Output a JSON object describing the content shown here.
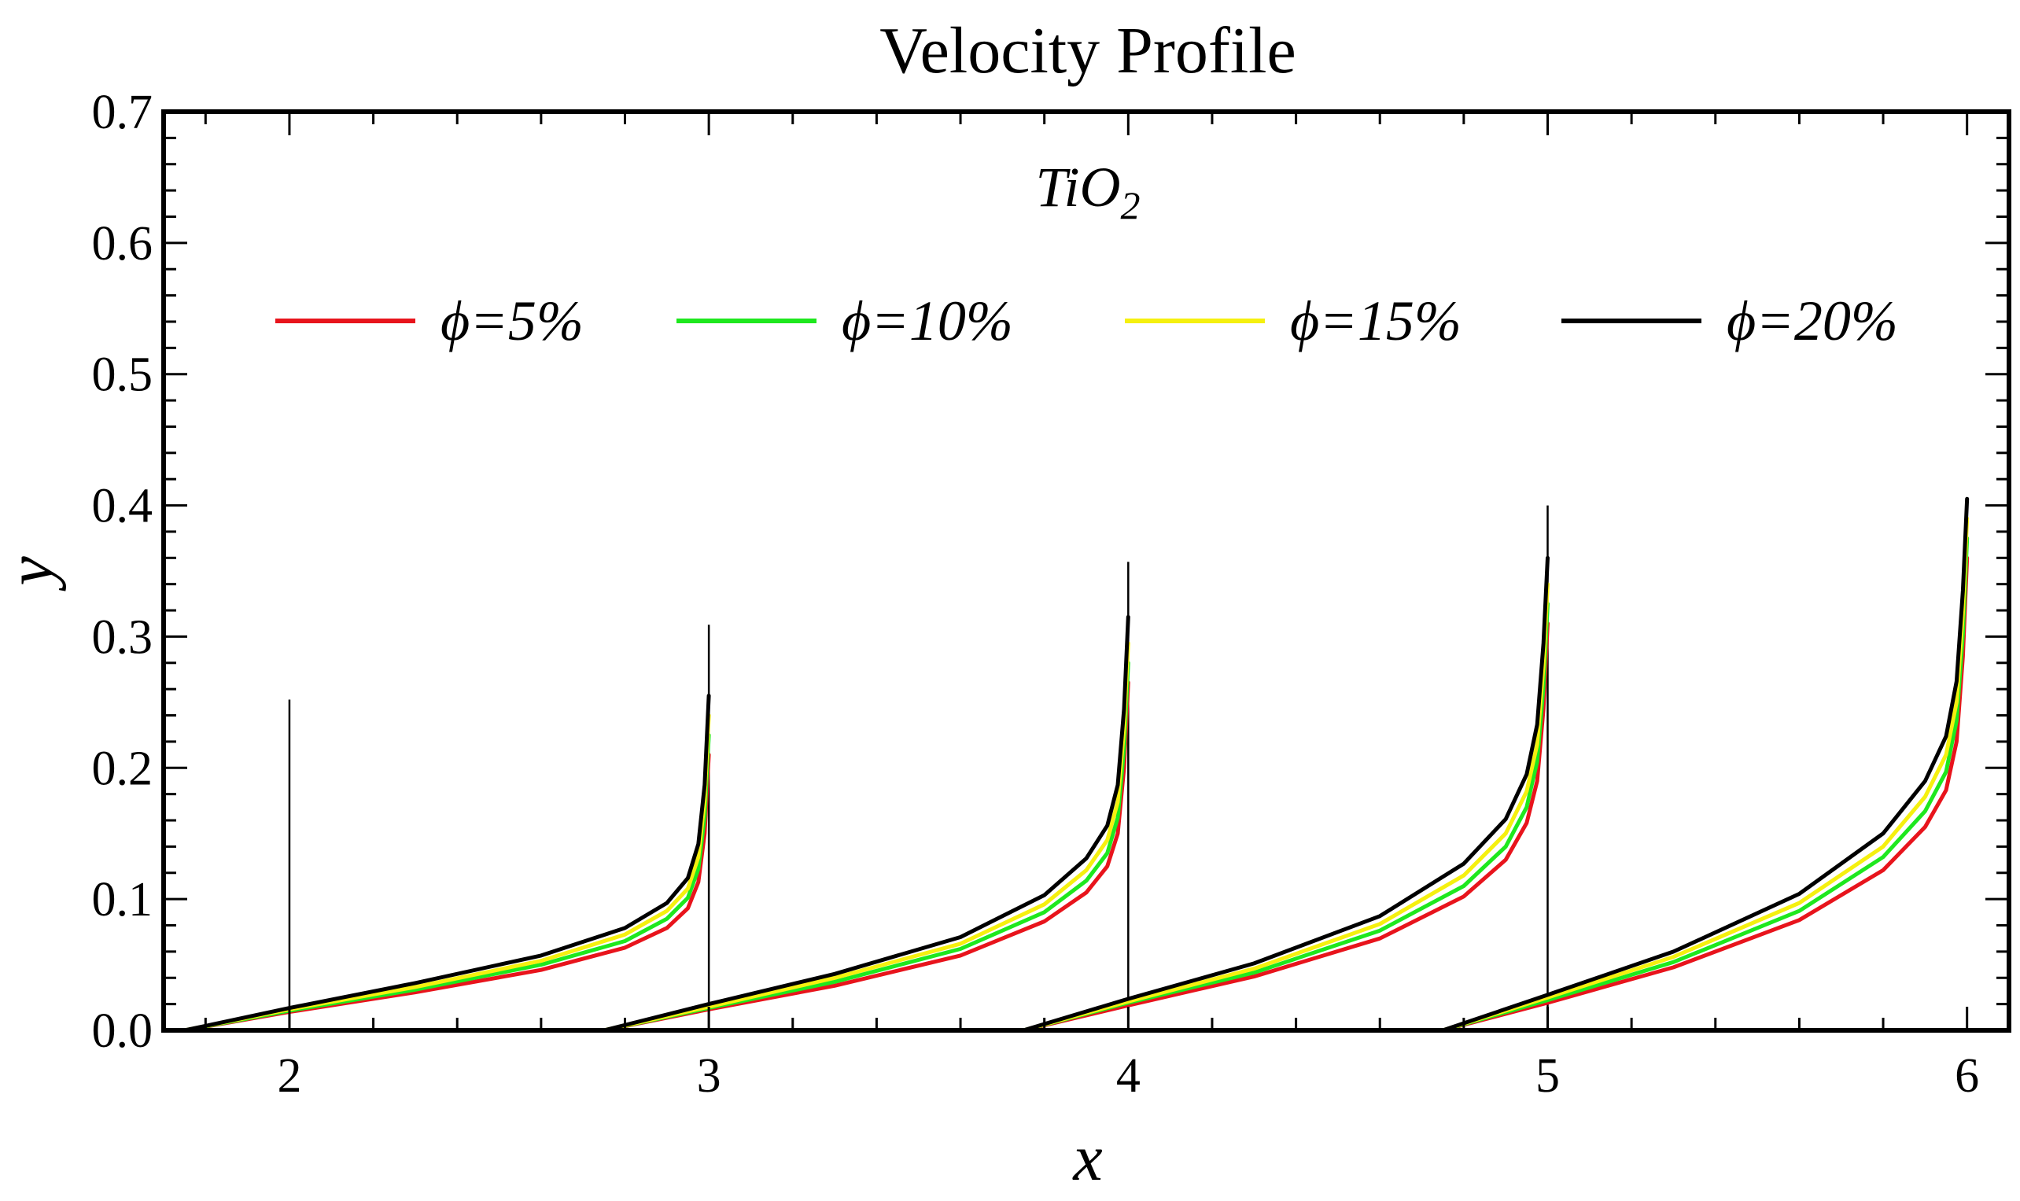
{
  "chart_data": {
    "type": "line",
    "title": "Velocity Profile",
    "xlabel": "x",
    "ylabel": "y",
    "xlim": [
      1.7,
      6.1
    ],
    "ylim": [
      0,
      0.7
    ],
    "xticks": [
      {
        "value": 2,
        "label": "2"
      },
      {
        "value": 3,
        "label": "3"
      },
      {
        "value": 4,
        "label": "4"
      },
      {
        "value": 5,
        "label": "5"
      },
      {
        "value": 6,
        "label": "6"
      }
    ],
    "yticks": [
      {
        "value": 0.0,
        "label": "0.0"
      },
      {
        "value": 0.1,
        "label": "0.1"
      },
      {
        "value": 0.2,
        "label": "0.2"
      },
      {
        "value": 0.3,
        "label": "0.3"
      },
      {
        "value": 0.4,
        "label": "0.4"
      },
      {
        "value": 0.5,
        "label": "0.5"
      },
      {
        "value": 0.6,
        "label": "0.6"
      },
      {
        "value": 0.7,
        "label": "0.7"
      }
    ],
    "annotation": {
      "base": "TiO",
      "subscript": "2"
    },
    "legend_position": "top",
    "segments": [
      {
        "x0": 1.75,
        "x1": 3.0
      },
      {
        "x0": 2.75,
        "x1": 4.0
      },
      {
        "x0": 3.75,
        "x1": 5.0
      },
      {
        "x0": 4.75,
        "x1": 6.0
      }
    ],
    "vertical_lines": [
      {
        "x": 2,
        "ymax": 0.252
      },
      {
        "x": 3,
        "ymax": 0.309
      },
      {
        "x": 4,
        "ymax": 0.357
      },
      {
        "x": 5,
        "ymax": 0.4
      }
    ],
    "series": [
      {
        "name": "ϕ=5%",
        "color": "#e8141c",
        "segment_points": [
          [
            [
              1.75,
              0
            ],
            [
              2.0,
              0.014
            ],
            [
              2.3,
              0.029
            ],
            [
              2.6,
              0.046
            ],
            [
              2.8,
              0.063
            ],
            [
              2.9,
              0.078
            ],
            [
              2.95,
              0.093
            ],
            [
              2.975,
              0.113
            ],
            [
              2.99,
              0.15
            ],
            [
              3.0,
              0.21
            ]
          ],
          [
            [
              2.75,
              0
            ],
            [
              3.0,
              0.016
            ],
            [
              3.3,
              0.034
            ],
            [
              3.6,
              0.057
            ],
            [
              3.8,
              0.083
            ],
            [
              3.9,
              0.105
            ],
            [
              3.95,
              0.125
            ],
            [
              3.975,
              0.15
            ],
            [
              3.99,
              0.2
            ],
            [
              4.0,
              0.265
            ]
          ],
          [
            [
              3.75,
              0
            ],
            [
              4.0,
              0.019
            ],
            [
              4.3,
              0.041
            ],
            [
              4.6,
              0.07
            ],
            [
              4.8,
              0.102
            ],
            [
              4.9,
              0.13
            ],
            [
              4.95,
              0.158
            ],
            [
              4.975,
              0.19
            ],
            [
              4.99,
              0.245
            ],
            [
              5.0,
              0.31
            ]
          ],
          [
            [
              4.75,
              0
            ],
            [
              5.0,
              0.021
            ],
            [
              5.3,
              0.048
            ],
            [
              5.6,
              0.084
            ],
            [
              5.8,
              0.122
            ],
            [
              5.9,
              0.155
            ],
            [
              5.95,
              0.183
            ],
            [
              5.975,
              0.22
            ],
            [
              5.99,
              0.285
            ],
            [
              6.0,
              0.36
            ]
          ]
        ]
      },
      {
        "name": "ϕ=10%",
        "color": "#1ee81e",
        "segment_points": [
          [
            [
              1.75,
              0
            ],
            [
              2.0,
              0.015
            ],
            [
              2.3,
              0.031
            ],
            [
              2.6,
              0.05
            ],
            [
              2.8,
              0.068
            ],
            [
              2.9,
              0.085
            ],
            [
              2.95,
              0.101
            ],
            [
              2.975,
              0.123
            ],
            [
              2.99,
              0.163
            ],
            [
              3.0,
              0.225
            ]
          ],
          [
            [
              2.75,
              0
            ],
            [
              3.0,
              0.017
            ],
            [
              3.3,
              0.037
            ],
            [
              3.6,
              0.062
            ],
            [
              3.8,
              0.09
            ],
            [
              3.9,
              0.114
            ],
            [
              3.95,
              0.135
            ],
            [
              3.975,
              0.162
            ],
            [
              3.99,
              0.215
            ],
            [
              4.0,
              0.28
            ]
          ],
          [
            [
              3.75,
              0
            ],
            [
              4.0,
              0.021
            ],
            [
              4.3,
              0.044
            ],
            [
              4.6,
              0.076
            ],
            [
              4.8,
              0.11
            ],
            [
              4.9,
              0.14
            ],
            [
              4.95,
              0.17
            ],
            [
              4.975,
              0.205
            ],
            [
              4.99,
              0.262
            ],
            [
              5.0,
              0.325
            ]
          ],
          [
            [
              4.75,
              0
            ],
            [
              5.0,
              0.023
            ],
            [
              5.3,
              0.052
            ],
            [
              5.6,
              0.091
            ],
            [
              5.8,
              0.132
            ],
            [
              5.9,
              0.167
            ],
            [
              5.95,
              0.197
            ],
            [
              5.975,
              0.236
            ],
            [
              5.99,
              0.302
            ],
            [
              6.0,
              0.375
            ]
          ]
        ]
      },
      {
        "name": "ϕ=15%",
        "color": "#f5f00f",
        "segment_points": [
          [
            [
              1.75,
              0
            ],
            [
              2.0,
              0.016
            ],
            [
              2.3,
              0.033
            ],
            [
              2.6,
              0.053
            ],
            [
              2.8,
              0.073
            ],
            [
              2.9,
              0.091
            ],
            [
              2.95,
              0.108
            ],
            [
              2.975,
              0.132
            ],
            [
              2.99,
              0.175
            ],
            [
              3.0,
              0.24
            ]
          ],
          [
            [
              2.75,
              0
            ],
            [
              3.0,
              0.018
            ],
            [
              3.3,
              0.04
            ],
            [
              3.6,
              0.066
            ],
            [
              3.8,
              0.096
            ],
            [
              3.9,
              0.122
            ],
            [
              3.95,
              0.145
            ],
            [
              3.975,
              0.174
            ],
            [
              3.99,
              0.23
            ],
            [
              4.0,
              0.295
            ]
          ],
          [
            [
              3.75,
              0
            ],
            [
              4.0,
              0.022
            ],
            [
              4.3,
              0.047
            ],
            [
              4.6,
              0.081
            ],
            [
              4.8,
              0.118
            ],
            [
              4.9,
              0.15
            ],
            [
              4.95,
              0.182
            ],
            [
              4.975,
              0.218
            ],
            [
              4.99,
              0.278
            ],
            [
              5.0,
              0.34
            ]
          ],
          [
            [
              4.75,
              0
            ],
            [
              5.0,
              0.025
            ],
            [
              5.3,
              0.056
            ],
            [
              5.6,
              0.097
            ],
            [
              5.8,
              0.14
            ],
            [
              5.9,
              0.178
            ],
            [
              5.95,
              0.21
            ],
            [
              5.975,
              0.25
            ],
            [
              5.99,
              0.318
            ],
            [
              6.0,
              0.39
            ]
          ]
        ]
      },
      {
        "name": "ϕ=20%",
        "color": "#000000",
        "segment_points": [
          [
            [
              1.75,
              0
            ],
            [
              2.0,
              0.017
            ],
            [
              2.3,
              0.036
            ],
            [
              2.6,
              0.057
            ],
            [
              2.8,
              0.078
            ],
            [
              2.9,
              0.097
            ],
            [
              2.95,
              0.116
            ],
            [
              2.975,
              0.142
            ],
            [
              2.99,
              0.187
            ],
            [
              3.0,
              0.255
            ]
          ],
          [
            [
              2.75,
              0
            ],
            [
              3.0,
              0.02
            ],
            [
              3.3,
              0.043
            ],
            [
              3.6,
              0.071
            ],
            [
              3.8,
              0.103
            ],
            [
              3.9,
              0.131
            ],
            [
              3.95,
              0.156
            ],
            [
              3.975,
              0.187
            ],
            [
              3.99,
              0.245
            ],
            [
              4.0,
              0.315
            ]
          ],
          [
            [
              3.75,
              0
            ],
            [
              4.0,
              0.024
            ],
            [
              4.3,
              0.051
            ],
            [
              4.6,
              0.087
            ],
            [
              4.8,
              0.127
            ],
            [
              4.9,
              0.161
            ],
            [
              4.95,
              0.195
            ],
            [
              4.975,
              0.233
            ],
            [
              4.99,
              0.295
            ],
            [
              5.0,
              0.36
            ]
          ],
          [
            [
              4.75,
              0
            ],
            [
              5.0,
              0.027
            ],
            [
              5.3,
              0.06
            ],
            [
              5.6,
              0.104
            ],
            [
              5.8,
              0.15
            ],
            [
              5.9,
              0.19
            ],
            [
              5.95,
              0.224
            ],
            [
              5.975,
              0.266
            ],
            [
              5.99,
              0.335
            ],
            [
              6.0,
              0.405
            ]
          ]
        ]
      }
    ]
  }
}
